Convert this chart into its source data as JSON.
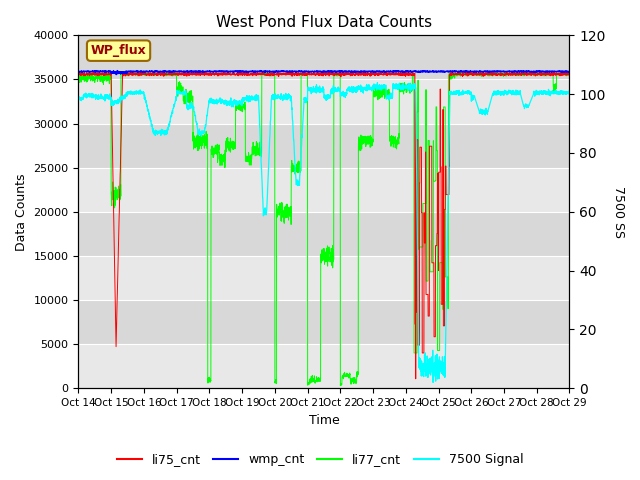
{
  "title": "West Pond Flux Data Counts",
  "ylabel_left": "Data Counts",
  "ylabel_right": "7500 SS",
  "xlabel": "Time",
  "xlim": [
    0,
    15
  ],
  "ylim_left": [
    0,
    40000
  ],
  "ylim_right": [
    0,
    120
  ],
  "xtick_labels": [
    "Oct 14",
    "Oct 15",
    "Oct 16",
    "Oct 17",
    "Oct 18",
    "Oct 19",
    "Oct 20",
    "Oct 21",
    "Oct 22",
    "Oct 23",
    "Oct 24",
    "Oct 25",
    "Oct 26",
    "Oct 27",
    "Oct 28",
    "Oct 29"
  ],
  "background_color": "#d8d8d8",
  "stripe_color": "#e8e8e8",
  "box_label": "WP_flux",
  "box_facecolor": "#ffff99",
  "box_edgecolor": "#cc0000",
  "li75_color": "red",
  "wmp_color": "blue",
  "li77_color": "#00ff00",
  "sig_color": "cyan",
  "grid_color": "white"
}
